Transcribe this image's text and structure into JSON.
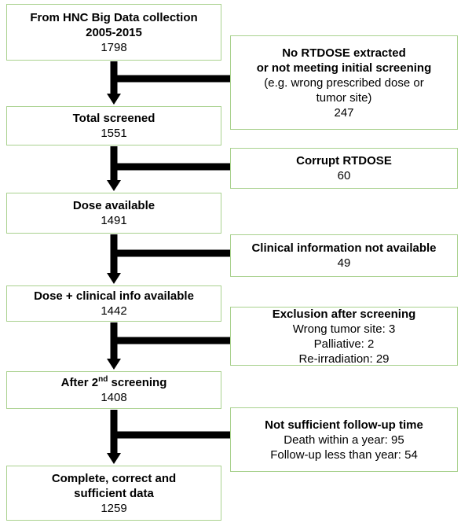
{
  "steps": [
    {
      "title": [
        "From HNC Big Data collection",
        "2005-2015"
      ],
      "count": 1798
    },
    {
      "title": [
        "Total screened"
      ],
      "count": 1551
    },
    {
      "title": [
        "Dose available"
      ],
      "count": 1491
    },
    {
      "title": [
        "Dose + clinical info available"
      ],
      "count": 1442
    },
    {
      "title": [
        "After 2"
      ],
      "superscript": "nd",
      "title_end": " screening",
      "count": 1408
    },
    {
      "title": [
        "Complete, correct and",
        "sufficient data"
      ],
      "count": 1259
    }
  ],
  "exclusions": [
    {
      "title": [
        "No RTDOSE extracted",
        "or not meeting initial screening"
      ],
      "details": [
        "(e.g. wrong prescribed dose or",
        "tumor site)"
      ],
      "count": 247
    },
    {
      "title": [
        "Corrupt RTDOSE"
      ],
      "count": 60
    },
    {
      "title": [
        "Clinical information not available"
      ],
      "count": 49
    },
    {
      "title": [
        "Exclusion after screening"
      ],
      "details": [
        "Wrong tumor site: 3",
        "Palliative: 2",
        "Re-irradiation: 29"
      ]
    },
    {
      "title": [
        "Not sufficient follow-up time"
      ],
      "details": [
        "Death within a year: 95",
        "Follow-up less than year: 54"
      ]
    }
  ]
}
